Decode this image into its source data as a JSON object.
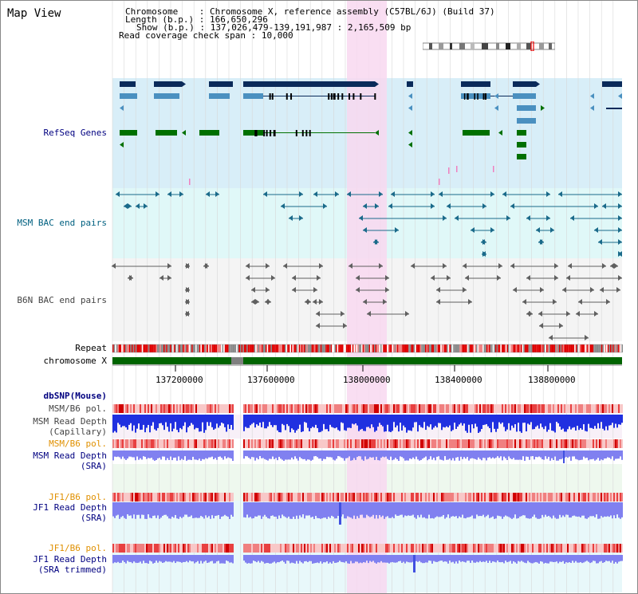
{
  "page": {
    "title": "Map View"
  },
  "info": {
    "chromosome_label": "Chromosome",
    "chromosome_value": "Chromosome X, reference assembly (C57BL/6J) (Build 37)",
    "length_label": "Length (b.p.)",
    "length_value": "166,650,296",
    "show_label": "Show (b.p.)",
    "show_value": "137,026,479-139,191,987 : 2,165,509 bp",
    "read_coverage_label": "Read coverage check span",
    "read_coverage_value": "10,000"
  },
  "tracks": {
    "refseq": "RefSeq Genes",
    "msm_bac": "MSM BAC end pairs",
    "b6n_bac": "B6N BAC end pairs",
    "repeat": "Repeat",
    "chromosome": "chromosome X",
    "dbsnp": "dbSNP(Mouse)",
    "msm_b6_pol_1": "MSM/B6 pol.",
    "msm_read_depth_cap_1": "MSM Read Depth",
    "msm_read_depth_cap_2": "(Capillary)",
    "msm_b6_pol_2": "MSM/B6 pol.",
    "msm_read_depth_sra_1": "MSM Read Depth",
    "msm_read_depth_sra_2": "(SRA)",
    "jf1_b6_pol_1": "JF1/B6 pol.",
    "jf1_read_depth_sra_1": "JF1 Read Depth",
    "jf1_read_depth_sra_2": "(SRA)",
    "jf1_b6_pol_2": "JF1/B6 pol.",
    "jf1_read_depth_trim_1": "JF1 Read Depth",
    "jf1_read_depth_trim_2": "(SRA trimmed)"
  },
  "axis": {
    "ticks": [
      "137200000",
      "137600000",
      "138000000",
      "138400000",
      "138800000"
    ]
  },
  "colors": {
    "highlight": "#f8d8f0",
    "refseq_bg": "#d8eef8",
    "bac_bg": "#e0f8f8",
    "navy_gene": "#0a2a5a",
    "mid_gene": "#4a90c0",
    "green_gene": "#007000",
    "chrom_bar": "#006400",
    "label_blue": "#000080",
    "label_teal": "#006080",
    "label_orange": "#e09000",
    "depth_blue": "#2030e0",
    "depth_light": "#8080f0"
  }
}
